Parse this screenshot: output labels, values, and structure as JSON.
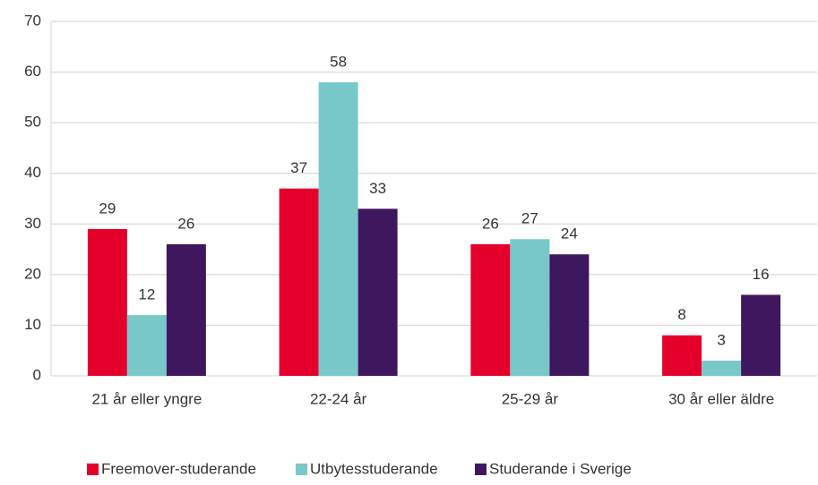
{
  "chart_data": {
    "type": "bar",
    "categories": [
      "21 år eller yngre",
      "22-24 år",
      "25-29 år",
      "30 år eller äldre"
    ],
    "series": [
      {
        "name": "Freemover-studerande",
        "color": "#e4002b",
        "values": [
          29,
          37,
          26,
          8
        ]
      },
      {
        "name": "Utbytesstuderande",
        "color": "#78c8c9",
        "values": [
          12,
          58,
          27,
          3
        ]
      },
      {
        "name": "Studerande i Sverige",
        "color": "#3f175e",
        "values": [
          26,
          33,
          24,
          16
        ]
      }
    ],
    "ylim": [
      0,
      70
    ],
    "yticks": [
      0,
      10,
      20,
      30,
      40,
      50,
      60,
      70
    ],
    "grid": true,
    "legend": "bottom"
  }
}
